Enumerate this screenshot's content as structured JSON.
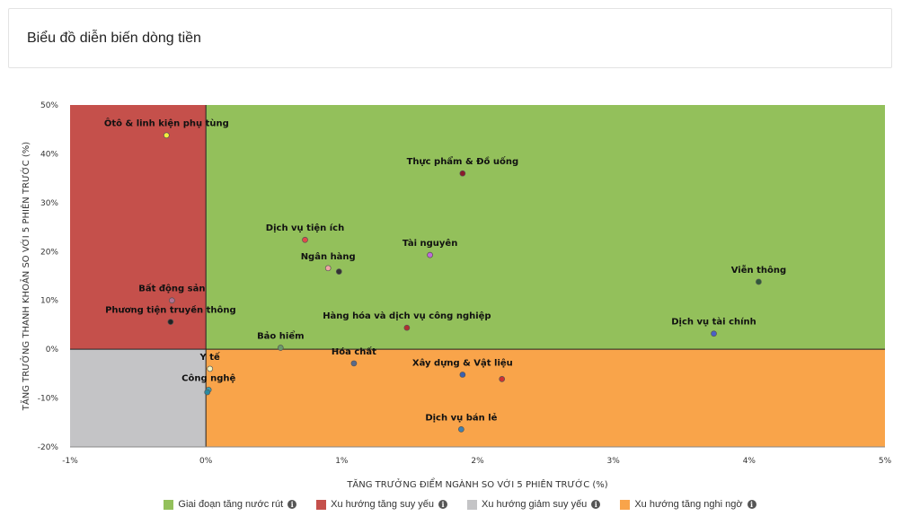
{
  "header": {
    "title": "Biểu đồ diễn biến dòng tiền"
  },
  "chart_data": {
    "type": "scatter",
    "title": "",
    "xlabel": "TĂNG TRƯỞNG ĐIỂM NGÀNH SO VỚI 5 PHIÊN TRƯỚC (%)",
    "ylabel": "TĂNG TRƯỞNG THANH KHOẢN SO VỚI 5 PHIÊN TRƯỚC (%)",
    "xlim": [
      -1,
      5
    ],
    "ylim": [
      -20,
      50
    ],
    "x_ticks": [
      -1,
      0,
      1,
      2,
      3,
      4,
      5
    ],
    "x_tick_labels": [
      "-1%",
      "0%",
      "1%",
      "2%",
      "3%",
      "4%",
      "5%"
    ],
    "y_ticks": [
      -20,
      -10,
      0,
      10,
      20,
      30,
      40,
      50
    ],
    "y_tick_labels": [
      "-20%",
      "-10%",
      "0%",
      "10%",
      "20%",
      "30%",
      "40%",
      "50%"
    ],
    "legend_position": "bottom",
    "quadrants": [
      {
        "name": "Giai đoạn tăng nước rút",
        "color": "#93c05b",
        "region": "x>=0,y>=0"
      },
      {
        "name": "Xu hướng tăng suy yếu",
        "color": "#c5504b",
        "region": "x<0,y>=0"
      },
      {
        "name": "Xu hướng giảm suy yếu",
        "color": "#c4c4c6",
        "region": "x<0,y<0"
      },
      {
        "name": "Xu hướng tăng nghi ngờ",
        "color": "#f9a44a",
        "region": "x>=0,y<0"
      }
    ],
    "points": [
      {
        "label": "Ôtô & linh kiện phụ tùng",
        "x": -0.29,
        "y": 43.8,
        "color": "#f4ef3c"
      },
      {
        "label": "Thực phẩm & Đồ uống",
        "x": 1.89,
        "y": 36.0,
        "color": "#8b1a2a"
      },
      {
        "label": "Dịch vụ tiện ích",
        "x": 0.73,
        "y": 22.4,
        "color": "#e04a4a"
      },
      {
        "label": "Tài nguyên",
        "x": 1.65,
        "y": 19.3,
        "color": "#c06ad9"
      },
      {
        "label": "Ngân hàng",
        "x": 0.9,
        "y": 16.6,
        "color": "#f0a5a5"
      },
      {
        "label": "",
        "x": 0.98,
        "y": 15.9,
        "color": "#333333"
      },
      {
        "label": "Viễn thông",
        "x": 4.07,
        "y": 13.8,
        "color": "#2f5a3a"
      },
      {
        "label": "Bất động sản",
        "x": -0.25,
        "y": 10.0,
        "color": "#b07090"
      },
      {
        "label": "Phương tiện truyền thông",
        "x": -0.26,
        "y": 5.6,
        "color": "#222222"
      },
      {
        "label": "Hàng hóa và dịch vụ công nghiệp",
        "x": 1.48,
        "y": 4.4,
        "color": "#b03030"
      },
      {
        "label": "Dịch vụ tài chính",
        "x": 3.74,
        "y": 3.2,
        "color": "#4a5fc8"
      },
      {
        "label": "Bảo hiểm",
        "x": 0.55,
        "y": 0.3,
        "color": "#6a9a6a"
      },
      {
        "label": "Hóa chất",
        "x": 1.09,
        "y": -2.9,
        "color": "#5a6a8a"
      },
      {
        "label": "Y tế",
        "x": 0.03,
        "y": -4.0,
        "color": "#f4f4c0"
      },
      {
        "label": "Xây dựng & Vật liệu",
        "x": 1.89,
        "y": -5.2,
        "color": "#3a60b0"
      },
      {
        "label": "",
        "x": 2.18,
        "y": -6.1,
        "color": "#d03030"
      },
      {
        "label": "Công nghệ",
        "x": 0.02,
        "y": -8.3,
        "color": "#40a0b0"
      },
      {
        "label": "",
        "x": 0.01,
        "y": -8.8,
        "color": "#2a8aa0"
      },
      {
        "label": "Dịch vụ bán lẻ",
        "x": 1.88,
        "y": -16.4,
        "color": "#4080b0"
      }
    ]
  },
  "legend": {
    "items": [
      {
        "label": "Giai đoạn tăng nước rút",
        "color": "#93c05b"
      },
      {
        "label": "Xu hướng tăng suy yếu",
        "color": "#c5504b"
      },
      {
        "label": "Xu hướng giảm suy yếu",
        "color": "#c4c4c6"
      },
      {
        "label": "Xu hướng tăng nghi ngờ",
        "color": "#f9a44a"
      }
    ],
    "info_icon": "info-icon"
  }
}
